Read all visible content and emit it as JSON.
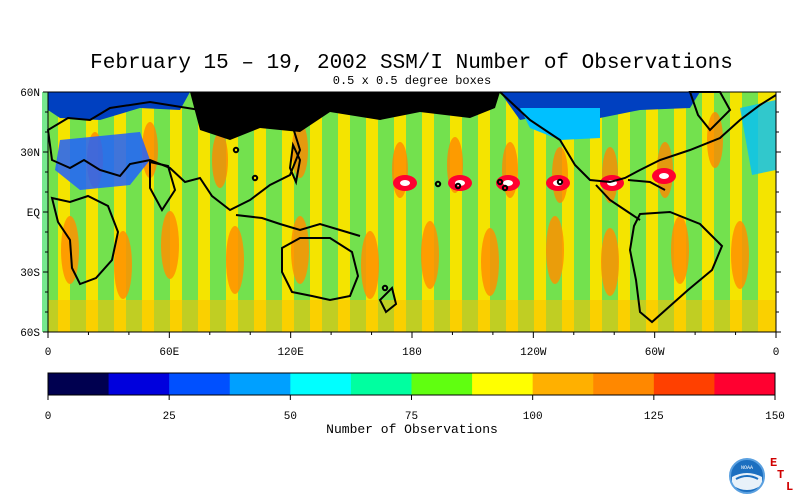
{
  "title": "February 15 – 19, 2002 SSM/I Number of Observations",
  "subtitle": "0.5 x 0.5 degree boxes",
  "map": {
    "lat_ticks": [
      "60N",
      "30N",
      "EQ",
      "30S",
      "60S"
    ],
    "lon_ticks": [
      "0",
      "60E",
      "120E",
      "180",
      "120W",
      "60W",
      "0"
    ]
  },
  "colorbar": {
    "label": "Number of Observations",
    "tick_labels": [
      "0",
      "25",
      "50",
      "75",
      "100",
      "125",
      "150"
    ],
    "colors": [
      "#000050",
      "#0000dd",
      "#0050ff",
      "#00a0ff",
      "#00ffff",
      "#00ffa0",
      "#60ff10",
      "#ffff00",
      "#ffb000",
      "#ff8800",
      "#ff4000",
      "#ff0030"
    ],
    "min": 0,
    "max": 150
  },
  "logo": {
    "text": "NOAA",
    "letters": [
      "E",
      "T",
      "L"
    ],
    "accent": "#d00000"
  }
}
